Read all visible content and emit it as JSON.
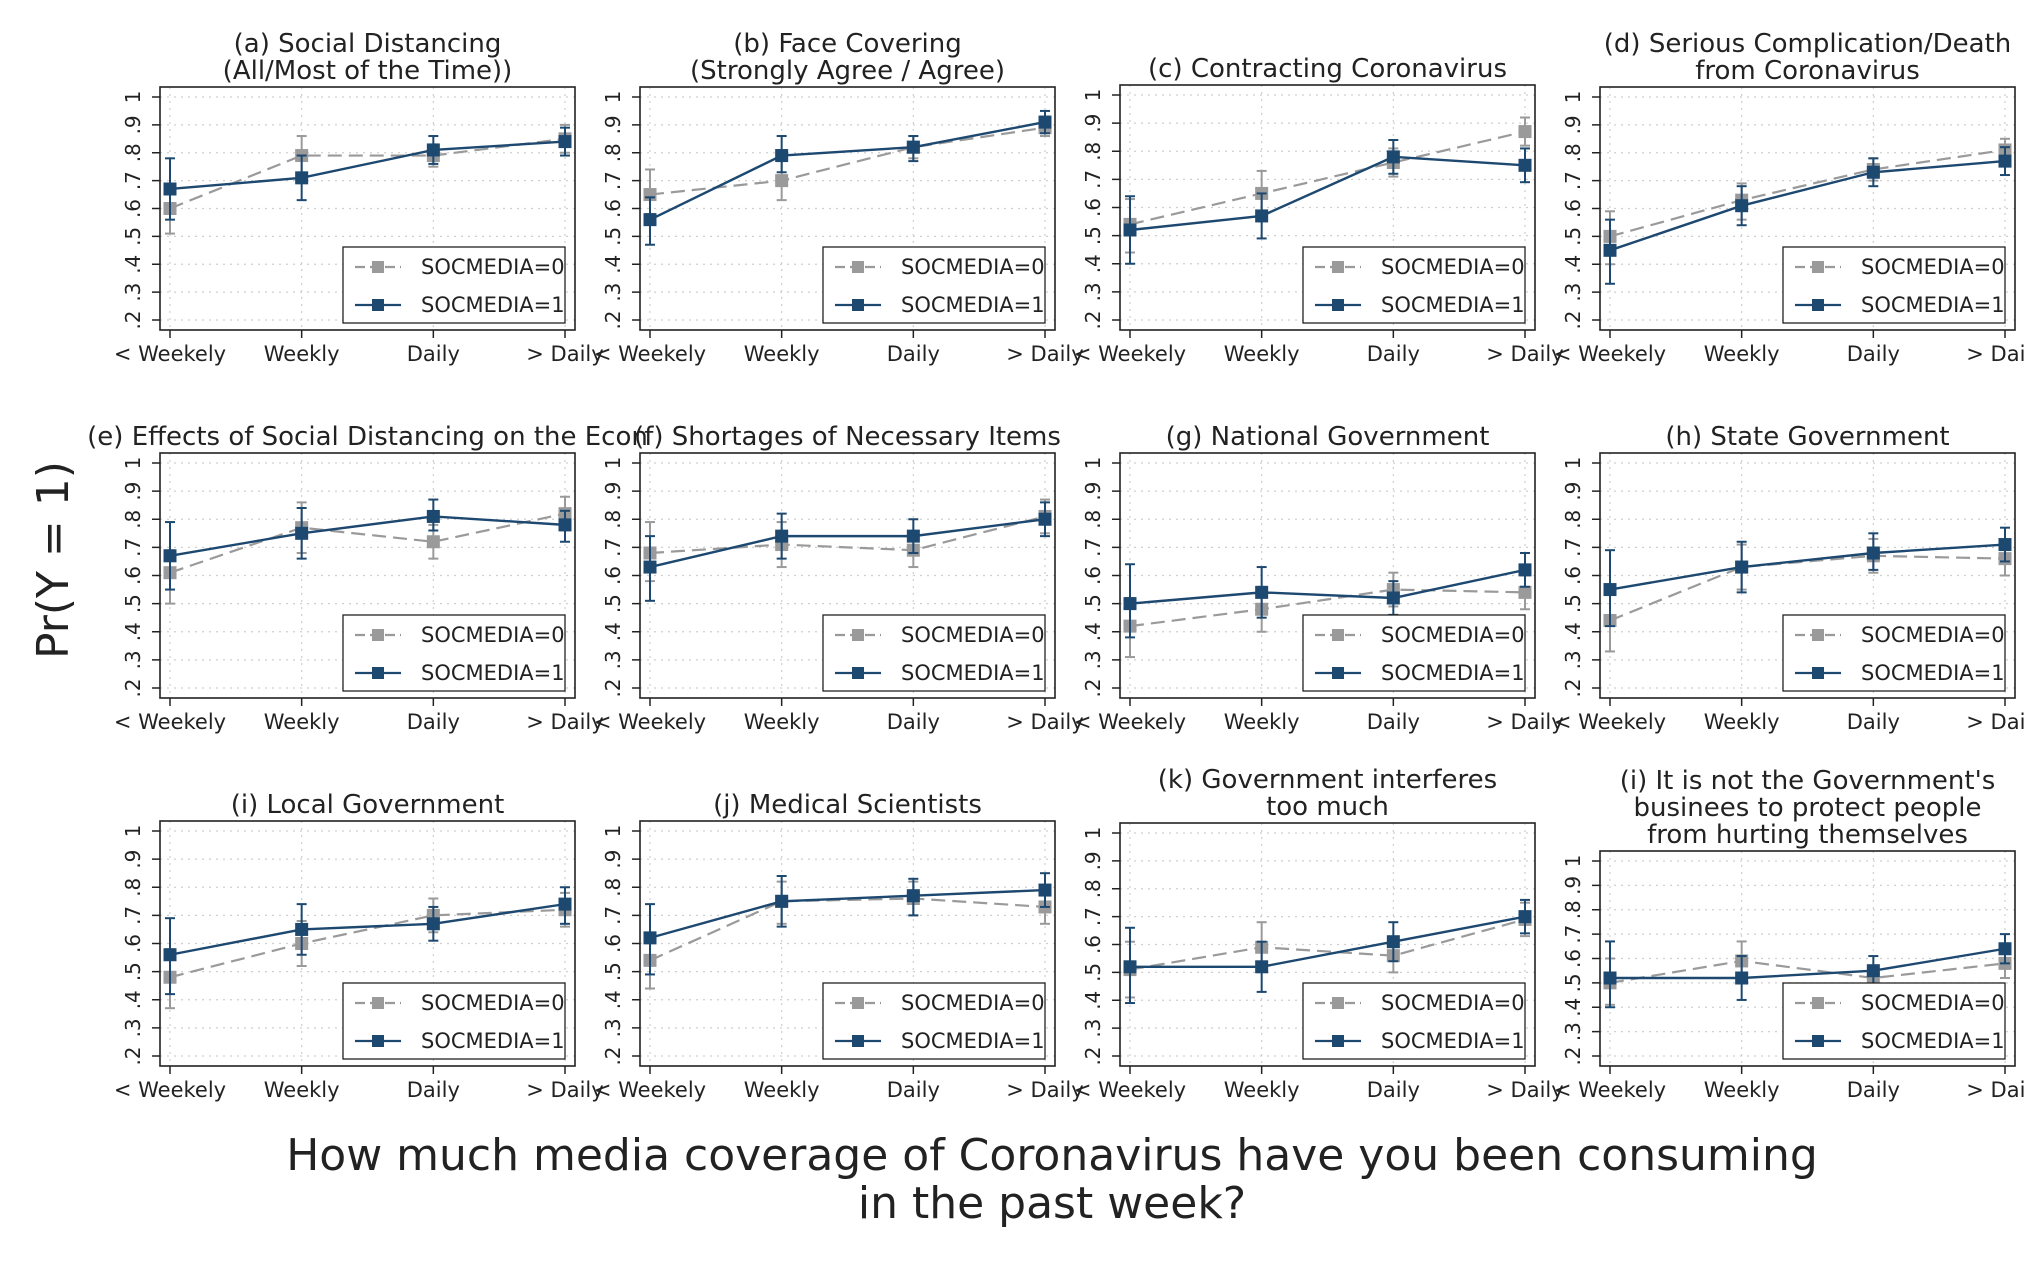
{
  "figure": {
    "ylabel": "Pr(Y = 1)",
    "xlabel_line1": "How much media coverage of Coronavirus have you been consuming",
    "xlabel_line2": "in the past week?"
  },
  "legend_labels": [
    "SOCMEDIA=0",
    "SOCMEDIA=1"
  ],
  "colors": {
    "socmedia0": "#9a9a9a",
    "socmedia1": "#1d4870",
    "gridline": "#cfcfcf",
    "frame": "#222222"
  },
  "chart_data": [
    {
      "type": "line",
      "title": [
        "(a) Social Distancing",
        "(All/Most of the Time))"
      ],
      "categories": [
        "< Weekely",
        "Weekly",
        "Daily",
        "> Daily"
      ],
      "ylim": [
        0.2,
        1
      ],
      "yticks": [
        ".2",
        ".3",
        ".4",
        ".5",
        ".6",
        ".7",
        ".8",
        ".9",
        "1"
      ],
      "legend_position": "bottom-right",
      "series": [
        {
          "name": "SOCMEDIA=0",
          "values": [
            0.6,
            0.79,
            0.79,
            0.85
          ],
          "ci_low": [
            0.51,
            0.72,
            0.75,
            0.8
          ],
          "ci_high": [
            0.67,
            0.86,
            0.83,
            0.9
          ]
        },
        {
          "name": "SOCMEDIA=1",
          "values": [
            0.67,
            0.71,
            0.81,
            0.84
          ],
          "ci_low": [
            0.56,
            0.63,
            0.76,
            0.79
          ],
          "ci_high": [
            0.78,
            0.79,
            0.86,
            0.89
          ]
        }
      ]
    },
    {
      "type": "line",
      "title": [
        "(b) Face Covering",
        "(Strongly Agree / Agree)"
      ],
      "categories": [
        "< Weekely",
        "Weekly",
        "Daily",
        "> Daily"
      ],
      "ylim": [
        0.2,
        1
      ],
      "yticks": [
        ".2",
        ".3",
        ".4",
        ".5",
        ".6",
        ".7",
        ".8",
        ".9",
        "1"
      ],
      "legend_position": "bottom-right",
      "series": [
        {
          "name": "SOCMEDIA=0",
          "values": [
            0.65,
            0.7,
            0.82,
            0.89
          ],
          "ci_low": [
            0.58,
            0.63,
            0.78,
            0.86
          ],
          "ci_high": [
            0.74,
            0.77,
            0.86,
            0.93
          ]
        },
        {
          "name": "SOCMEDIA=1",
          "values": [
            0.56,
            0.79,
            0.82,
            0.91
          ],
          "ci_low": [
            0.47,
            0.73,
            0.77,
            0.87
          ],
          "ci_high": [
            0.64,
            0.86,
            0.86,
            0.95
          ]
        }
      ]
    },
    {
      "type": "line",
      "title": [
        "(c) Contracting Coronavirus"
      ],
      "categories": [
        "< Weekely",
        "Weekly",
        "Daily",
        "> Daily"
      ],
      "ylim": [
        0.2,
        1
      ],
      "yticks": [
        ".2",
        ".3",
        ".4",
        ".5",
        ".6",
        ".7",
        ".8",
        ".9",
        "1"
      ],
      "legend_position": "bottom-right",
      "series": [
        {
          "name": "SOCMEDIA=0",
          "values": [
            0.54,
            0.65,
            0.76,
            0.87
          ],
          "ci_low": [
            0.44,
            0.56,
            0.71,
            0.82
          ],
          "ci_high": [
            0.63,
            0.73,
            0.81,
            0.92
          ]
        },
        {
          "name": "SOCMEDIA=1",
          "values": [
            0.52,
            0.57,
            0.78,
            0.75
          ],
          "ci_low": [
            0.4,
            0.49,
            0.72,
            0.69
          ],
          "ci_high": [
            0.64,
            0.65,
            0.84,
            0.81
          ]
        }
      ]
    },
    {
      "type": "line",
      "title": [
        "(d) Serious Complication/Death",
        "from Coronavirus"
      ],
      "categories": [
        "< Weekely",
        "Weekly",
        "Daily",
        "> Daily"
      ],
      "ylim": [
        0.2,
        1
      ],
      "yticks": [
        ".2",
        ".3",
        ".4",
        ".5",
        ".6",
        ".7",
        ".8",
        ".9",
        "1"
      ],
      "legend_position": "bottom-right",
      "series": [
        {
          "name": "SOCMEDIA=0",
          "values": [
            0.5,
            0.63,
            0.74,
            0.81
          ],
          "ci_low": [
            0.4,
            0.56,
            0.7,
            0.77
          ],
          "ci_high": [
            0.59,
            0.69,
            0.78,
            0.85
          ]
        },
        {
          "name": "SOCMEDIA=1",
          "values": [
            0.45,
            0.61,
            0.73,
            0.77
          ],
          "ci_low": [
            0.33,
            0.54,
            0.68,
            0.72
          ],
          "ci_high": [
            0.56,
            0.68,
            0.78,
            0.82
          ]
        }
      ]
    },
    {
      "type": "line",
      "title": [
        "(e) Effects of Social Distancing on the Econ"
      ],
      "categories": [
        "< Weekely",
        "Weekly",
        "Daily",
        "> Daily"
      ],
      "ylim": [
        0.2,
        1
      ],
      "yticks": [
        ".2",
        ".3",
        ".4",
        ".5",
        ".6",
        ".7",
        ".8",
        ".9",
        "1"
      ],
      "legend_position": "bottom-right",
      "series": [
        {
          "name": "SOCMEDIA=0",
          "values": [
            0.61,
            0.77,
            0.72,
            0.82
          ],
          "ci_low": [
            0.5,
            0.68,
            0.66,
            0.76
          ],
          "ci_high": [
            0.69,
            0.86,
            0.78,
            0.88
          ]
        },
        {
          "name": "SOCMEDIA=1",
          "values": [
            0.67,
            0.75,
            0.81,
            0.78
          ],
          "ci_low": [
            0.55,
            0.66,
            0.76,
            0.72
          ],
          "ci_high": [
            0.79,
            0.84,
            0.87,
            0.83
          ]
        }
      ]
    },
    {
      "type": "line",
      "title": [
        "(f) Shortages of Necessary Items"
      ],
      "categories": [
        "< Weekely",
        "Weekly",
        "Daily",
        "> Daily"
      ],
      "ylim": [
        0.2,
        1
      ],
      "yticks": [
        ".2",
        ".3",
        ".4",
        ".5",
        ".6",
        ".7",
        ".8",
        ".9",
        "1"
      ],
      "legend_position": "bottom-right",
      "series": [
        {
          "name": "SOCMEDIA=0",
          "values": [
            0.68,
            0.71,
            0.69,
            0.81
          ],
          "ci_low": [
            0.58,
            0.63,
            0.63,
            0.75
          ],
          "ci_high": [
            0.79,
            0.79,
            0.75,
            0.87
          ]
        },
        {
          "name": "SOCMEDIA=1",
          "values": [
            0.63,
            0.74,
            0.74,
            0.8
          ],
          "ci_low": [
            0.51,
            0.66,
            0.68,
            0.74
          ],
          "ci_high": [
            0.74,
            0.82,
            0.8,
            0.86
          ]
        }
      ]
    },
    {
      "type": "line",
      "title": [
        "(g) National Government"
      ],
      "categories": [
        "< Weekely",
        "Weekly",
        "Daily",
        "> Daily"
      ],
      "ylim": [
        0.2,
        1
      ],
      "yticks": [
        ".2",
        ".3",
        ".4",
        ".5",
        ".6",
        ".7",
        ".8",
        ".9",
        "1"
      ],
      "legend_position": "bottom-right",
      "series": [
        {
          "name": "SOCMEDIA=0",
          "values": [
            0.42,
            0.48,
            0.55,
            0.54
          ],
          "ci_low": [
            0.31,
            0.4,
            0.49,
            0.48
          ],
          "ci_high": [
            0.52,
            0.56,
            0.61,
            0.6
          ]
        },
        {
          "name": "SOCMEDIA=1",
          "values": [
            0.5,
            0.54,
            0.52,
            0.62
          ],
          "ci_low": [
            0.38,
            0.45,
            0.46,
            0.56
          ],
          "ci_high": [
            0.64,
            0.63,
            0.58,
            0.68
          ]
        }
      ]
    },
    {
      "type": "line",
      "title": [
        "(h) State Government"
      ],
      "categories": [
        "< Weekely",
        "Weekly",
        "Daily",
        "> Daily"
      ],
      "ylim": [
        0.2,
        1
      ],
      "yticks": [
        ".2",
        ".3",
        ".4",
        ".5",
        ".6",
        ".7",
        ".8",
        ".9",
        "1"
      ],
      "legend_position": "bottom-right",
      "series": [
        {
          "name": "SOCMEDIA=0",
          "values": [
            0.44,
            0.63,
            0.67,
            0.66
          ],
          "ci_low": [
            0.33,
            0.55,
            0.61,
            0.6
          ],
          "ci_high": [
            0.55,
            0.71,
            0.73,
            0.72
          ]
        },
        {
          "name": "SOCMEDIA=1",
          "values": [
            0.55,
            0.63,
            0.68,
            0.71
          ],
          "ci_low": [
            0.42,
            0.54,
            0.62,
            0.65
          ],
          "ci_high": [
            0.69,
            0.72,
            0.75,
            0.77
          ]
        }
      ]
    },
    {
      "type": "line",
      "title": [
        "(i) Local Government"
      ],
      "categories": [
        "< Weekely",
        "Weekly",
        "Daily",
        "> Daily"
      ],
      "ylim": [
        0.2,
        1
      ],
      "yticks": [
        ".2",
        ".3",
        ".4",
        ".5",
        ".6",
        ".7",
        ".8",
        ".9",
        "1"
      ],
      "legend_position": "bottom-right",
      "series": [
        {
          "name": "SOCMEDIA=0",
          "values": [
            0.48,
            0.6,
            0.7,
            0.72
          ],
          "ci_low": [
            0.37,
            0.52,
            0.64,
            0.66
          ],
          "ci_high": [
            0.58,
            0.68,
            0.76,
            0.78
          ]
        },
        {
          "name": "SOCMEDIA=1",
          "values": [
            0.56,
            0.65,
            0.67,
            0.74
          ],
          "ci_low": [
            0.42,
            0.56,
            0.61,
            0.67
          ],
          "ci_high": [
            0.69,
            0.74,
            0.73,
            0.8
          ]
        }
      ]
    },
    {
      "type": "line",
      "title": [
        "(j) Medical Scientists"
      ],
      "categories": [
        "< Weekely",
        "Weekly",
        "Daily",
        "> Daily"
      ],
      "ylim": [
        0.2,
        1
      ],
      "yticks": [
        ".2",
        ".3",
        ".4",
        ".5",
        ".6",
        ".7",
        ".8",
        ".9",
        "1"
      ],
      "legend_position": "bottom-right",
      "series": [
        {
          "name": "SOCMEDIA=0",
          "values": [
            0.54,
            0.75,
            0.76,
            0.73
          ],
          "ci_low": [
            0.44,
            0.67,
            0.7,
            0.67
          ],
          "ci_high": [
            0.63,
            0.82,
            0.82,
            0.79
          ]
        },
        {
          "name": "SOCMEDIA=1",
          "values": [
            0.62,
            0.75,
            0.77,
            0.79
          ],
          "ci_low": [
            0.49,
            0.66,
            0.7,
            0.73
          ],
          "ci_high": [
            0.74,
            0.84,
            0.83,
            0.85
          ]
        }
      ]
    },
    {
      "type": "line",
      "title": [
        "(k) Government interferes",
        "too much"
      ],
      "categories": [
        "< Weekely",
        "Weekly",
        "Daily",
        "> Daily"
      ],
      "ylim": [
        0.2,
        1
      ],
      "yticks": [
        ".2",
        ".3",
        ".4",
        ".5",
        ".6",
        ".7",
        ".8",
        ".9",
        "1"
      ],
      "legend_position": "bottom-right",
      "series": [
        {
          "name": "SOCMEDIA=0",
          "values": [
            0.51,
            0.59,
            0.56,
            0.69
          ],
          "ci_low": [
            0.41,
            0.51,
            0.5,
            0.63
          ],
          "ci_high": [
            0.61,
            0.68,
            0.62,
            0.75
          ]
        },
        {
          "name": "SOCMEDIA=1",
          "values": [
            0.52,
            0.52,
            0.61,
            0.7
          ],
          "ci_low": [
            0.39,
            0.43,
            0.54,
            0.64
          ],
          "ci_high": [
            0.66,
            0.61,
            0.68,
            0.76
          ]
        }
      ]
    },
    {
      "type": "line",
      "title": [
        "(i) It is not the Government's",
        "businees to protect people",
        "from hurting themselves"
      ],
      "categories": [
        "< Weekely",
        "Weekly",
        "Daily",
        "> Daily"
      ],
      "ylim": [
        0.2,
        1
      ],
      "yticks": [
        ".2",
        ".3",
        ".4",
        ".5",
        ".6",
        ".7",
        ".8",
        ".9",
        "1"
      ],
      "legend_position": "bottom-right",
      "series": [
        {
          "name": "SOCMEDIA=0",
          "values": [
            0.5,
            0.59,
            0.52,
            0.58
          ],
          "ci_low": [
            0.41,
            0.5,
            0.47,
            0.52
          ],
          "ci_high": [
            0.6,
            0.67,
            0.57,
            0.64
          ]
        },
        {
          "name": "SOCMEDIA=1",
          "values": [
            0.52,
            0.52,
            0.55,
            0.64
          ],
          "ci_low": [
            0.4,
            0.43,
            0.49,
            0.58
          ],
          "ci_high": [
            0.67,
            0.61,
            0.61,
            0.7
          ]
        }
      ]
    }
  ]
}
